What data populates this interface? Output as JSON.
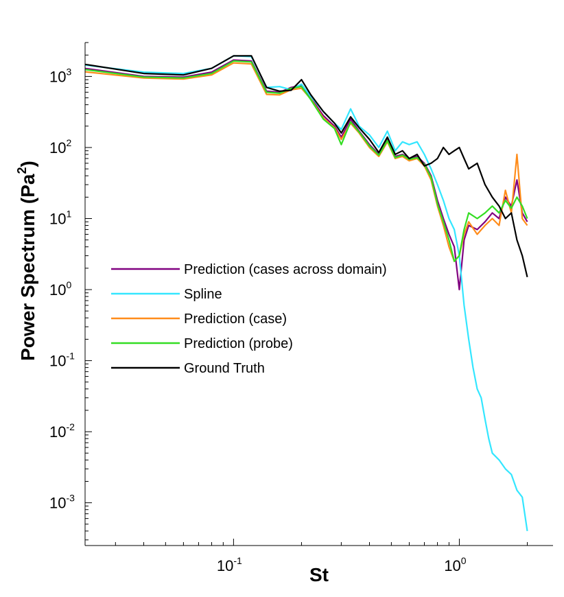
{
  "chart_data": {
    "type": "line",
    "xlabel": "St",
    "ylabel": "Power Spectrum (Pa",
    "ylabel_sup": "2",
    "ylabel_end": ")",
    "xscale": "log",
    "yscale": "log",
    "xlim": [
      0.022,
      2.6
    ],
    "ylim": [
      0.00025,
      3000
    ],
    "grid": false,
    "legend_position": "center-left",
    "x_ticks": [
      {
        "base": "10",
        "exp": "-1",
        "value": 0.1
      },
      {
        "base": "10",
        "exp": "0",
        "value": 1
      }
    ],
    "y_ticks": [
      {
        "base": "10",
        "exp": "3",
        "value": 1000
      },
      {
        "base": "10",
        "exp": "2",
        "value": 100
      },
      {
        "base": "10",
        "exp": "1",
        "value": 10
      },
      {
        "base": "10",
        "exp": "0",
        "value": 1
      },
      {
        "base": "10",
        "exp": "-1",
        "value": 0.1
      },
      {
        "base": "10",
        "exp": "-2",
        "value": 0.01
      },
      {
        "base": "10",
        "exp": "-3",
        "value": 0.001
      }
    ],
    "series": [
      {
        "name": "Prediction (cases across domain)",
        "color": "#800080",
        "x": [
          0.02,
          0.04,
          0.06,
          0.08,
          0.1,
          0.12,
          0.14,
          0.16,
          0.18,
          0.2,
          0.22,
          0.25,
          0.28,
          0.3,
          0.33,
          0.36,
          0.4,
          0.44,
          0.48,
          0.52,
          0.56,
          0.6,
          0.65,
          0.7,
          0.75,
          0.8,
          0.85,
          0.9,
          0.95,
          1.0,
          1.05,
          1.1,
          1.2,
          1.3,
          1.4,
          1.5,
          1.6,
          1.7,
          1.8,
          1.9,
          2.0
        ],
        "y": [
          1350,
          1000,
          980,
          1150,
          1700,
          1650,
          620,
          600,
          700,
          750,
          500,
          280,
          200,
          140,
          250,
          170,
          110,
          80,
          130,
          75,
          80,
          70,
          75,
          60,
          40,
          18,
          10,
          6,
          4,
          1.0,
          5,
          8,
          7,
          9,
          12,
          10,
          20,
          15,
          35,
          12,
          9
        ]
      },
      {
        "name": "Spline",
        "color": "#33e6ff",
        "x": [
          0.02,
          0.04,
          0.06,
          0.08,
          0.1,
          0.12,
          0.14,
          0.16,
          0.18,
          0.2,
          0.22,
          0.25,
          0.28,
          0.3,
          0.33,
          0.36,
          0.4,
          0.44,
          0.48,
          0.52,
          0.56,
          0.6,
          0.65,
          0.7,
          0.75,
          0.8,
          0.85,
          0.9,
          0.95,
          1.0,
          1.05,
          1.1,
          1.15,
          1.2,
          1.25,
          1.3,
          1.35,
          1.4,
          1.5,
          1.6,
          1.7,
          1.8,
          1.9,
          2.0
        ],
        "y": [
          1500,
          1150,
          1100,
          1300,
          1950,
          1900,
          700,
          720,
          650,
          780,
          520,
          320,
          220,
          180,
          350,
          200,
          150,
          100,
          170,
          90,
          120,
          110,
          120,
          80,
          50,
          30,
          18,
          10,
          7,
          3,
          0.6,
          0.2,
          0.08,
          0.04,
          0.03,
          0.015,
          0.008,
          0.005,
          0.004,
          0.003,
          0.0025,
          0.0015,
          0.0012,
          0.0004
        ]
      },
      {
        "name": "Prediction (case)",
        "color": "#ff8c1a",
        "x": [
          0.02,
          0.04,
          0.06,
          0.08,
          0.1,
          0.12,
          0.14,
          0.16,
          0.18,
          0.2,
          0.22,
          0.25,
          0.28,
          0.3,
          0.33,
          0.36,
          0.4,
          0.44,
          0.48,
          0.52,
          0.56,
          0.6,
          0.65,
          0.7,
          0.75,
          0.8,
          0.85,
          0.9,
          0.95,
          1.0,
          1.05,
          1.1,
          1.2,
          1.3,
          1.4,
          1.5,
          1.6,
          1.7,
          1.8,
          1.9,
          2.0
        ],
        "y": [
          1200,
          950,
          920,
          1050,
          1550,
          1500,
          560,
          550,
          650,
          680,
          480,
          260,
          190,
          130,
          220,
          160,
          100,
          75,
          120,
          70,
          75,
          65,
          70,
          55,
          35,
          15,
          8,
          4,
          2.5,
          3,
          6,
          9,
          6,
          8,
          10,
          8,
          25,
          12,
          80,
          10,
          8
        ]
      },
      {
        "name": "Prediction (probe)",
        "color": "#33dd22",
        "x": [
          0.02,
          0.04,
          0.06,
          0.08,
          0.1,
          0.12,
          0.14,
          0.16,
          0.18,
          0.2,
          0.22,
          0.25,
          0.28,
          0.3,
          0.33,
          0.36,
          0.4,
          0.44,
          0.48,
          0.52,
          0.56,
          0.6,
          0.65,
          0.7,
          0.75,
          0.8,
          0.85,
          0.9,
          0.95,
          1.0,
          1.05,
          1.1,
          1.2,
          1.3,
          1.4,
          1.5,
          1.6,
          1.7,
          1.8,
          1.9,
          2.0
        ],
        "y": [
          1300,
          980,
          950,
          1100,
          1650,
          1600,
          600,
          580,
          680,
          720,
          470,
          250,
          185,
          110,
          230,
          165,
          105,
          78,
          125,
          72,
          78,
          68,
          72,
          58,
          38,
          16,
          9,
          5,
          2.5,
          3,
          7,
          12,
          10,
          12,
          15,
          12,
          18,
          14,
          20,
          15,
          10
        ]
      },
      {
        "name": "Ground Truth",
        "color": "#000000",
        "x": [
          0.02,
          0.04,
          0.06,
          0.08,
          0.1,
          0.12,
          0.14,
          0.16,
          0.18,
          0.2,
          0.22,
          0.25,
          0.28,
          0.3,
          0.33,
          0.36,
          0.4,
          0.44,
          0.48,
          0.52,
          0.56,
          0.6,
          0.65,
          0.7,
          0.75,
          0.8,
          0.85,
          0.9,
          0.95,
          1.0,
          1.05,
          1.1,
          1.2,
          1.3,
          1.4,
          1.5,
          1.6,
          1.7,
          1.8,
          1.9,
          2.0
        ],
        "y": [
          1550,
          1100,
          1050,
          1300,
          1950,
          1950,
          700,
          620,
          640,
          900,
          550,
          320,
          220,
          160,
          270,
          190,
          130,
          85,
          140,
          80,
          90,
          70,
          80,
          55,
          60,
          70,
          100,
          80,
          90,
          100,
          70,
          50,
          60,
          30,
          20,
          15,
          10,
          12,
          5,
          3,
          1.5
        ]
      }
    ]
  }
}
